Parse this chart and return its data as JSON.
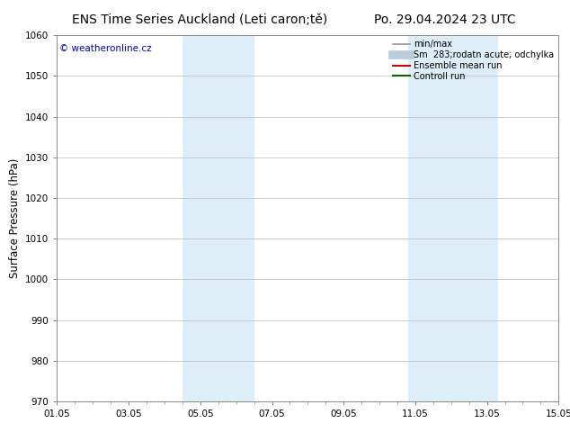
{
  "title_left": "ENS Time Series Auckland (Leti caron;tě)",
  "title_right": "Po. 29.04.2024 23 UTC",
  "ylabel": "Surface Pressure (hPa)",
  "ylim": [
    970,
    1060
  ],
  "yticks": [
    970,
    980,
    990,
    1000,
    1010,
    1020,
    1030,
    1040,
    1050,
    1060
  ],
  "xtick_labels": [
    "01.05",
    "03.05",
    "05.05",
    "07.05",
    "09.05",
    "11.05",
    "13.05",
    "15.05"
  ],
  "xtick_positions": [
    0,
    2,
    4,
    6,
    8,
    10,
    12,
    14
  ],
  "shaded_regions": [
    {
      "start": 3.5,
      "end": 5.5
    },
    {
      "start": 9.8,
      "end": 12.3
    }
  ],
  "shade_color": "#ddeef8",
  "watermark_text": "© weatheronline.cz",
  "watermark_color": "#0000cc",
  "legend_entries": [
    {
      "label": "min/max",
      "color": "#999999",
      "lw": 1.2,
      "linestyle": "-"
    },
    {
      "label": "Sm  283;rodatn acute; odchylka",
      "color": "#bbccdd",
      "lw": 7,
      "linestyle": "-"
    },
    {
      "label": "Ensemble mean run",
      "color": "#cc0000",
      "lw": 1.5,
      "linestyle": "-"
    },
    {
      "label": "Controll run",
      "color": "#006600",
      "lw": 1.5,
      "linestyle": "-"
    }
  ],
  "bg_color": "#ffffff",
  "plot_bg_color": "#ffffff",
  "grid_color": "#bbbbbb",
  "title_fontsize": 10,
  "tick_fontsize": 7.5,
  "ylabel_fontsize": 8.5,
  "watermark_fontsize": 7.5,
  "legend_fontsize": 7
}
